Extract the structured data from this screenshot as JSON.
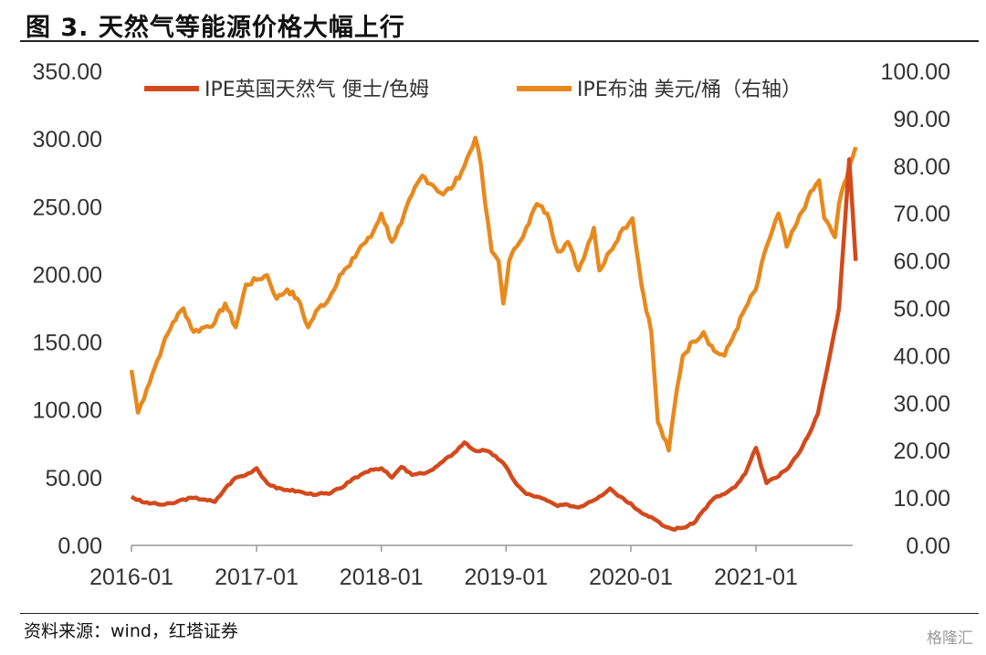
{
  "header": {
    "title": "图 3. 天然气等能源价格大幅上行"
  },
  "footer": {
    "source": "资料来源：wind，红塔证券",
    "watermark": "格隆汇"
  },
  "chart_data": {
    "type": "line",
    "title": "",
    "legend_position": "top",
    "grid": false,
    "x_ticks": [
      "2016-01",
      "2017-01",
      "2018-01",
      "2019-01",
      "2020-01",
      "2021-01"
    ],
    "x_range": [
      "2016-01",
      "2021-10"
    ],
    "y_left": {
      "range": [
        0,
        350
      ],
      "ticks": [
        "0.00",
        "50.00",
        "100.00",
        "150.00",
        "200.00",
        "250.00",
        "300.00",
        "350.00"
      ]
    },
    "y_right": {
      "range": [
        0,
        100
      ],
      "ticks": [
        "0.00",
        "10.00",
        "20.00",
        "30.00",
        "40.00",
        "50.00",
        "60.00",
        "70.00",
        "80.00",
        "90.00",
        "100.00"
      ]
    },
    "series": [
      {
        "name": "IPE英国天然气 便士/色姆",
        "axis": "left",
        "color": "#d24a1c",
        "points": [
          [
            "2016-01-01",
            36
          ],
          [
            "2016-02-01",
            32
          ],
          [
            "2016-03-01",
            31
          ],
          [
            "2016-04-01",
            30
          ],
          [
            "2016-05-01",
            31
          ],
          [
            "2016-06-01",
            34
          ],
          [
            "2016-07-01",
            35
          ],
          [
            "2016-08-01",
            34
          ],
          [
            "2016-09-01",
            32
          ],
          [
            "2016-10-01",
            42
          ],
          [
            "2016-11-01",
            50
          ],
          [
            "2016-12-01",
            52
          ],
          [
            "2017-01-01",
            57
          ],
          [
            "2017-02-01",
            46
          ],
          [
            "2017-03-01",
            42
          ],
          [
            "2017-04-01",
            41
          ],
          [
            "2017-05-01",
            40
          ],
          [
            "2017-06-01",
            38
          ],
          [
            "2017-07-01",
            38
          ],
          [
            "2017-08-01",
            38
          ],
          [
            "2017-09-01",
            42
          ],
          [
            "2017-10-01",
            47
          ],
          [
            "2017-11-01",
            52
          ],
          [
            "2017-12-01",
            56
          ],
          [
            "2018-01-01",
            57
          ],
          [
            "2018-02-01",
            50
          ],
          [
            "2018-03-01",
            58
          ],
          [
            "2018-04-01",
            52
          ],
          [
            "2018-05-01",
            53
          ],
          [
            "2018-06-01",
            56
          ],
          [
            "2018-07-01",
            62
          ],
          [
            "2018-08-01",
            68
          ],
          [
            "2018-09-01",
            76
          ],
          [
            "2018-10-01",
            70
          ],
          [
            "2018-11-01",
            70
          ],
          [
            "2018-12-01",
            66
          ],
          [
            "2019-01-01",
            58
          ],
          [
            "2019-02-01",
            45
          ],
          [
            "2019-03-01",
            38
          ],
          [
            "2019-04-01",
            36
          ],
          [
            "2019-05-01",
            33
          ],
          [
            "2019-06-01",
            29
          ],
          [
            "2019-07-01",
            30
          ],
          [
            "2019-08-01",
            28
          ],
          [
            "2019-09-01",
            32
          ],
          [
            "2019-10-01",
            36
          ],
          [
            "2019-11-01",
            42
          ],
          [
            "2019-12-01",
            36
          ],
          [
            "2020-01-01",
            31
          ],
          [
            "2020-02-01",
            24
          ],
          [
            "2020-03-01",
            21
          ],
          [
            "2020-04-01",
            15
          ],
          [
            "2020-05-01",
            12
          ],
          [
            "2020-06-01",
            13
          ],
          [
            "2020-07-01",
            16
          ],
          [
            "2020-08-01",
            26
          ],
          [
            "2020-09-01",
            35
          ],
          [
            "2020-10-01",
            38
          ],
          [
            "2020-11-01",
            43
          ],
          [
            "2020-12-01",
            53
          ],
          [
            "2021-01-01",
            72
          ],
          [
            "2021-02-01",
            46
          ],
          [
            "2021-03-01",
            50
          ],
          [
            "2021-04-01",
            56
          ],
          [
            "2021-05-01",
            66
          ],
          [
            "2021-06-01",
            80
          ],
          [
            "2021-07-01",
            97
          ],
          [
            "2021-08-01",
            135
          ],
          [
            "2021-09-01",
            175
          ],
          [
            "2021-10-01",
            285
          ],
          [
            "2021-10-20",
            210
          ]
        ]
      },
      {
        "name": "IPE布油 美元/桶（右轴）",
        "axis": "right",
        "color": "#e8891e",
        "points": [
          [
            "2016-01-01",
            37
          ],
          [
            "2016-01-20",
            28
          ],
          [
            "2016-02-15",
            33
          ],
          [
            "2016-03-01",
            36
          ],
          [
            "2016-04-01",
            42
          ],
          [
            "2016-05-01",
            47
          ],
          [
            "2016-06-01",
            50
          ],
          [
            "2016-07-01",
            45
          ],
          [
            "2016-08-01",
            46
          ],
          [
            "2016-09-01",
            47
          ],
          [
            "2016-10-01",
            51
          ],
          [
            "2016-11-01",
            46
          ],
          [
            "2016-12-01",
            55
          ],
          [
            "2017-01-01",
            56
          ],
          [
            "2017-02-01",
            57
          ],
          [
            "2017-03-01",
            52
          ],
          [
            "2017-04-01",
            54
          ],
          [
            "2017-05-01",
            52
          ],
          [
            "2017-06-01",
            46
          ],
          [
            "2017-07-01",
            50
          ],
          [
            "2017-08-01",
            52
          ],
          [
            "2017-09-01",
            57
          ],
          [
            "2017-10-01",
            59
          ],
          [
            "2017-11-01",
            63
          ],
          [
            "2017-12-01",
            65
          ],
          [
            "2018-01-01",
            70
          ],
          [
            "2018-02-01",
            64
          ],
          [
            "2018-03-01",
            68
          ],
          [
            "2018-04-01",
            74
          ],
          [
            "2018-05-01",
            78
          ],
          [
            "2018-06-01",
            76
          ],
          [
            "2018-07-01",
            74
          ],
          [
            "2018-08-01",
            76
          ],
          [
            "2018-09-01",
            80
          ],
          [
            "2018-10-03",
            86
          ],
          [
            "2018-10-20",
            80
          ],
          [
            "2018-11-01",
            72
          ],
          [
            "2018-11-20",
            62
          ],
          [
            "2018-12-10",
            60
          ],
          [
            "2018-12-24",
            51
          ],
          [
            "2019-01-10",
            60
          ],
          [
            "2019-02-01",
            63
          ],
          [
            "2019-03-01",
            67
          ],
          [
            "2019-04-01",
            72
          ],
          [
            "2019-05-01",
            70
          ],
          [
            "2019-06-01",
            62
          ],
          [
            "2019-07-01",
            64
          ],
          [
            "2019-08-01",
            58
          ],
          [
            "2019-09-15",
            67
          ],
          [
            "2019-10-01",
            58
          ],
          [
            "2019-11-01",
            62
          ],
          [
            "2019-12-01",
            66
          ],
          [
            "2020-01-06",
            69
          ],
          [
            "2020-02-01",
            55
          ],
          [
            "2020-03-01",
            45
          ],
          [
            "2020-03-20",
            26
          ],
          [
            "2020-04-21",
            20
          ],
          [
            "2020-05-15",
            33
          ],
          [
            "2020-06-01",
            40
          ],
          [
            "2020-07-01",
            43
          ],
          [
            "2020-08-01",
            45
          ],
          [
            "2020-09-01",
            41
          ],
          [
            "2020-10-01",
            40
          ],
          [
            "2020-11-01",
            45
          ],
          [
            "2020-12-01",
            50
          ],
          [
            "2021-01-01",
            54
          ],
          [
            "2021-02-01",
            63
          ],
          [
            "2021-03-08",
            70
          ],
          [
            "2021-04-01",
            63
          ],
          [
            "2021-05-01",
            68
          ],
          [
            "2021-06-01",
            73
          ],
          [
            "2021-07-05",
            77
          ],
          [
            "2021-07-20",
            69
          ],
          [
            "2021-08-20",
            65
          ],
          [
            "2021-09-01",
            72
          ],
          [
            "2021-10-01",
            80
          ],
          [
            "2021-10-20",
            84
          ]
        ]
      }
    ]
  }
}
